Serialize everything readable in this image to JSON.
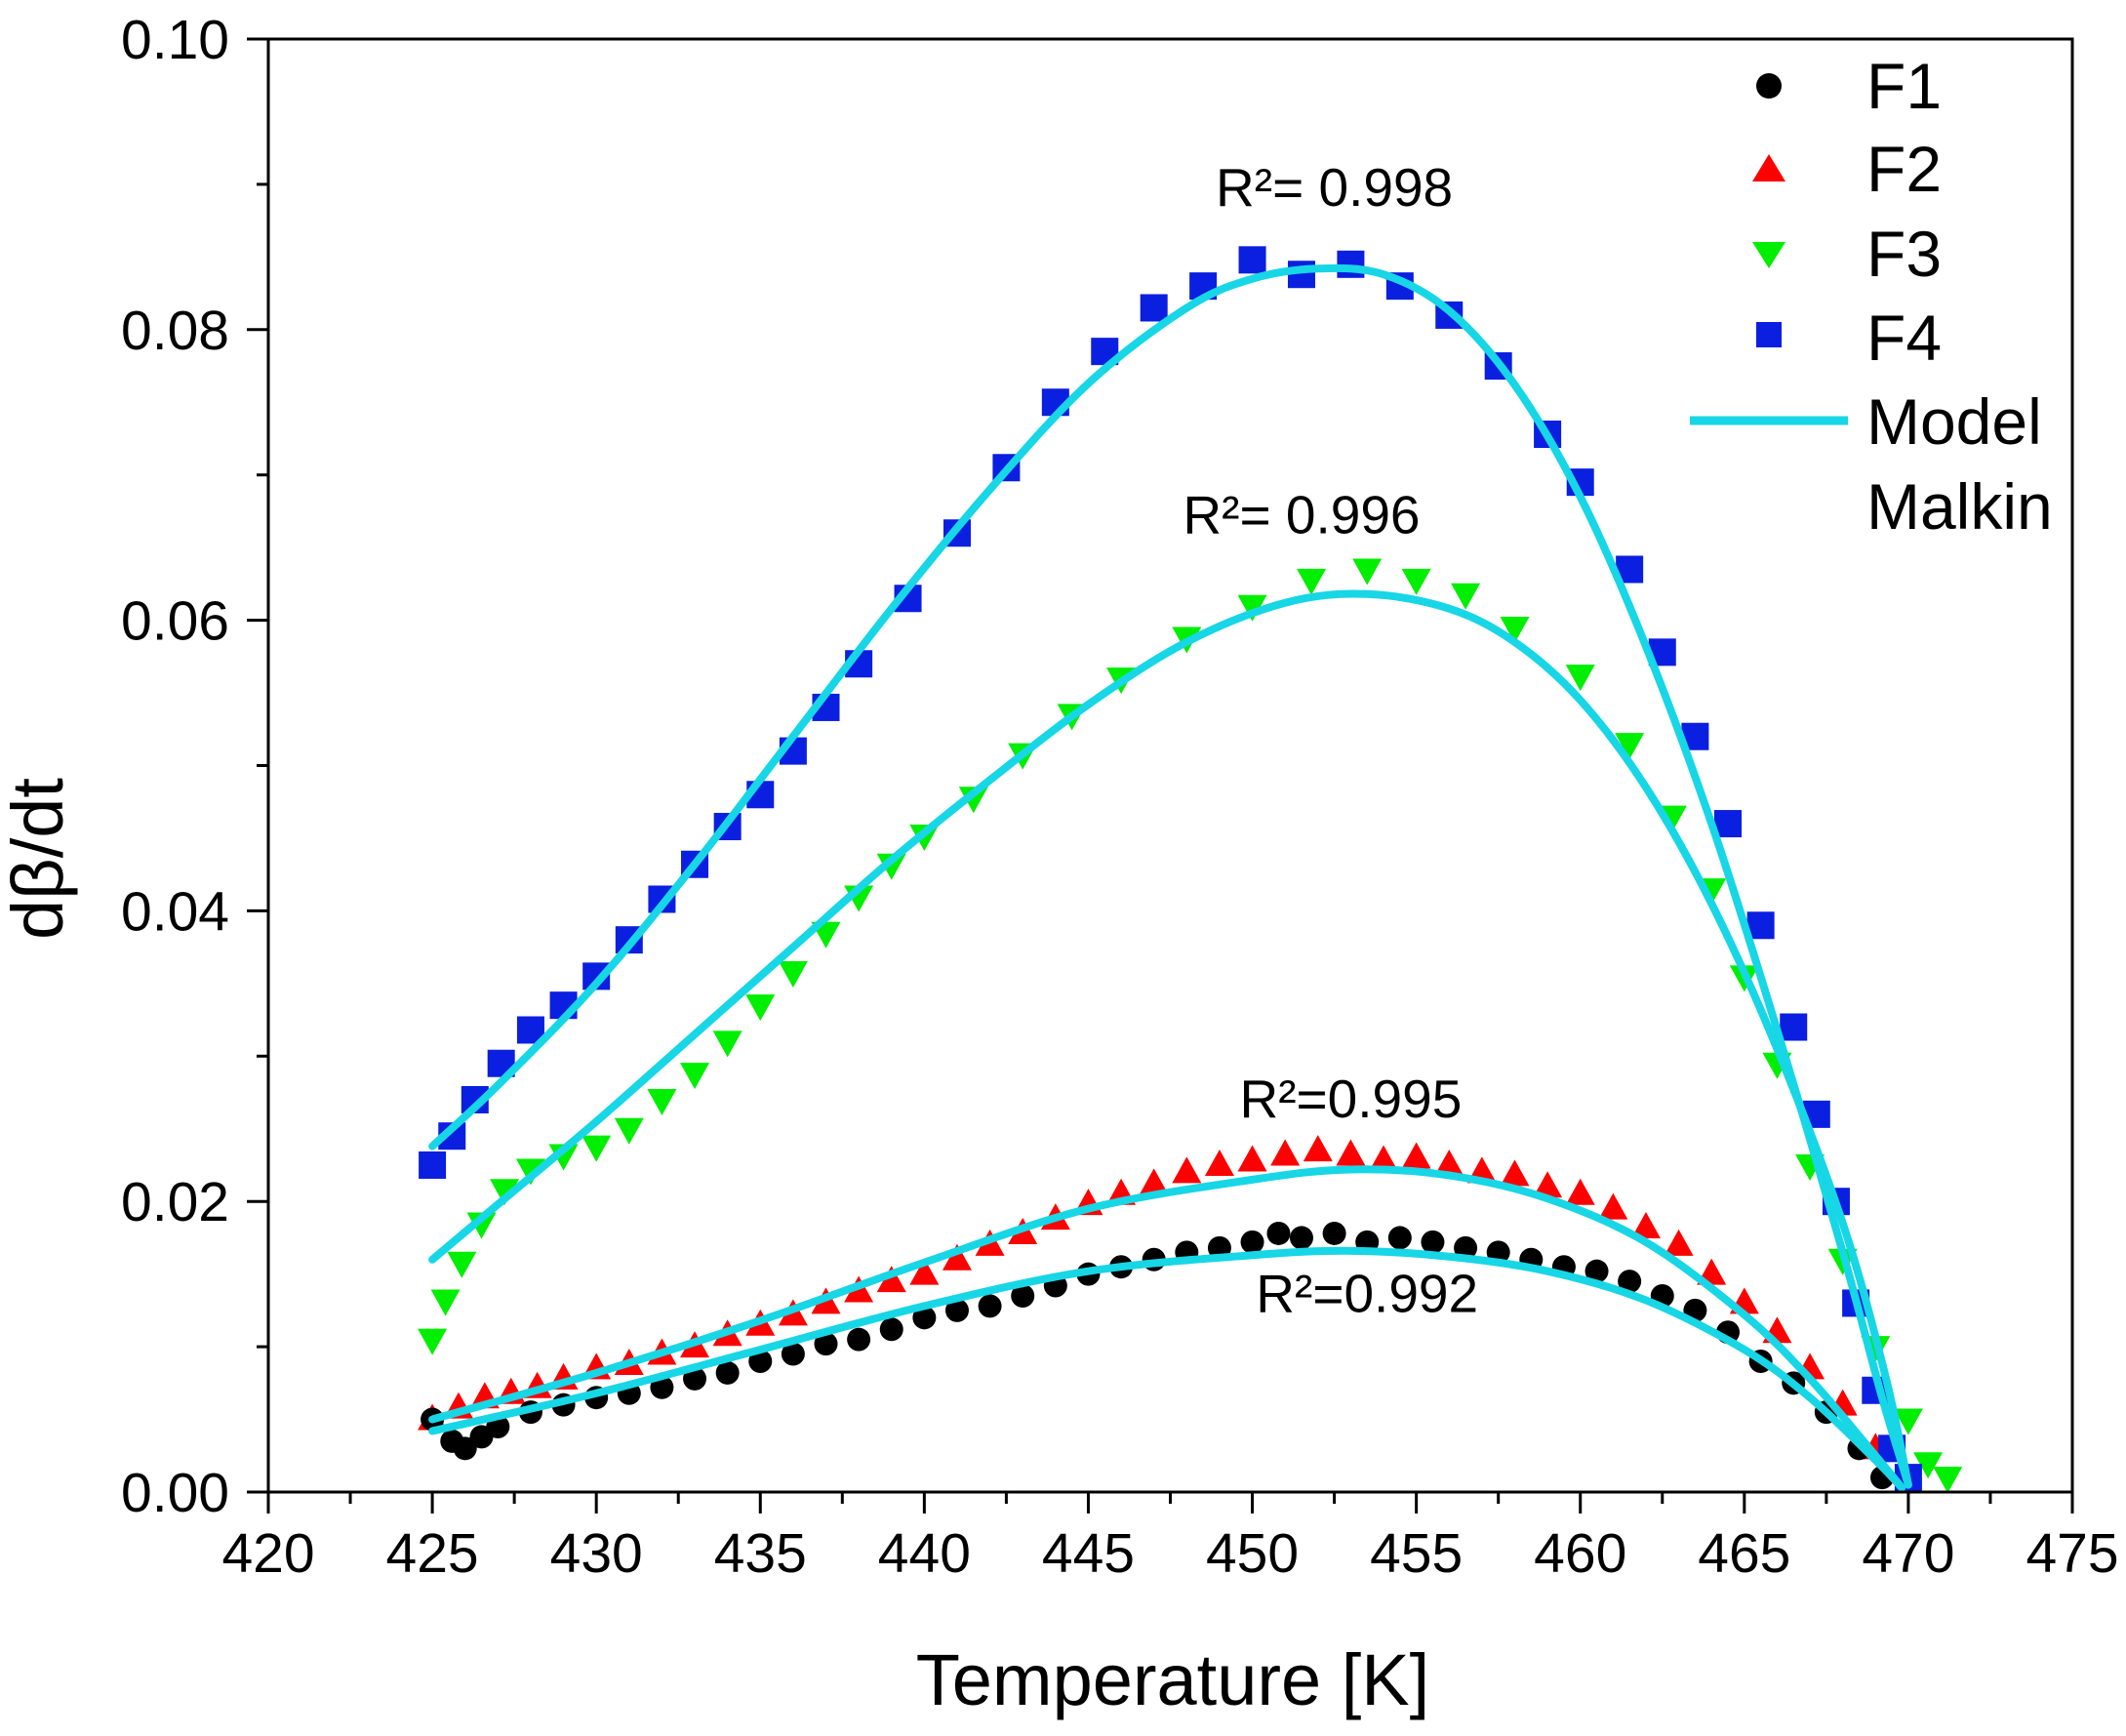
{
  "chart_data": {
    "type": "scatter",
    "xlabel": "Temperature [K]",
    "ylabel": "dβ/dt",
    "xlim": [
      420,
      475
    ],
    "ylim": [
      0.0,
      0.1
    ],
    "x_ticks": [
      420,
      425,
      430,
      435,
      440,
      445,
      450,
      455,
      460,
      465,
      470,
      475
    ],
    "y_ticks": [
      0.0,
      0.02,
      0.04,
      0.06,
      0.08,
      0.1
    ],
    "x_tick_labels": [
      "420",
      "425",
      "430",
      "435",
      "440",
      "445",
      "450",
      "455",
      "460",
      "465",
      "470",
      "475"
    ],
    "y_tick_labels": [
      "0.00",
      "0.02",
      "0.04",
      "0.06",
      "0.08",
      "0.10"
    ],
    "grid": false,
    "legend_position": "top-right",
    "legend": [
      {
        "label": "F1",
        "marker": "circle",
        "color": "#000000"
      },
      {
        "label": "F2",
        "marker": "triangle-up",
        "color": "#ff0000"
      },
      {
        "label": "F3",
        "marker": "triangle-down",
        "color": "#00ee00"
      },
      {
        "label": "F4",
        "marker": "square",
        "color": "#0a1fe0"
      },
      {
        "label_lines": [
          "Model",
          "Malkin"
        ],
        "marker": "line",
        "color": "#17d6e6"
      }
    ],
    "annotations": [
      {
        "text": "R²= 0.998",
        "x": 452.5,
        "y": 0.0885
      },
      {
        "text": "R²= 0.996",
        "x": 451.5,
        "y": 0.066
      },
      {
        "text": "R²=0.995",
        "x": 453.0,
        "y": 0.0258
      },
      {
        "text": "R²=0.992",
        "x": 453.5,
        "y": 0.0124
      }
    ],
    "series": [
      {
        "name": "F1",
        "kind": "points",
        "marker": "circle",
        "color": "#000000",
        "x": [
          425.0,
          425.6,
          426.0,
          426.5,
          427.0,
          428.0,
          429.0,
          430.0,
          431.0,
          432.0,
          433.0,
          434.0,
          435.0,
          436.0,
          437.0,
          438.0,
          439.0,
          440.0,
          441.0,
          442.0,
          443.0,
          444.0,
          445.0,
          446.0,
          447.0,
          448.0,
          449.0,
          450.0,
          450.8,
          451.5,
          452.5,
          453.5,
          454.5,
          455.5,
          456.5,
          457.5,
          458.5,
          459.5,
          460.5,
          461.5,
          462.5,
          463.5,
          464.5,
          465.5,
          466.5,
          467.5,
          468.5,
          469.2
        ],
        "y": [
          0.005,
          0.0035,
          0.003,
          0.0038,
          0.0045,
          0.0055,
          0.006,
          0.0065,
          0.0068,
          0.0072,
          0.0078,
          0.0082,
          0.009,
          0.0095,
          0.0102,
          0.0105,
          0.0112,
          0.012,
          0.0125,
          0.0128,
          0.0135,
          0.0142,
          0.015,
          0.0155,
          0.016,
          0.0165,
          0.0168,
          0.0172,
          0.0178,
          0.0175,
          0.0178,
          0.0172,
          0.0175,
          0.0172,
          0.0168,
          0.0165,
          0.016,
          0.0155,
          0.0152,
          0.0145,
          0.0135,
          0.0125,
          0.011,
          0.009,
          0.0075,
          0.0055,
          0.003,
          0.001
        ]
      },
      {
        "name": "F2",
        "kind": "points",
        "marker": "triangle-up",
        "color": "#ff0000",
        "x": [
          425.0,
          425.8,
          426.6,
          427.4,
          428.2,
          429.0,
          430.0,
          431.0,
          432.0,
          433.0,
          434.0,
          435.0,
          436.0,
          437.0,
          438.0,
          439.0,
          440.0,
          441.0,
          442.0,
          443.0,
          444.0,
          445.0,
          446.0,
          447.0,
          448.0,
          449.0,
          450.0,
          451.0,
          452.0,
          453.0,
          454.0,
          455.0,
          456.0,
          457.0,
          458.0,
          459.0,
          460.0,
          461.0,
          462.0,
          463.0,
          464.0,
          465.0,
          466.0,
          467.0,
          468.0,
          469.0
        ],
        "y": [
          0.005,
          0.0058,
          0.0065,
          0.0068,
          0.0072,
          0.0078,
          0.0085,
          0.0088,
          0.0095,
          0.01,
          0.0108,
          0.0115,
          0.0122,
          0.013,
          0.0138,
          0.0145,
          0.015,
          0.016,
          0.017,
          0.0178,
          0.0188,
          0.0198,
          0.0205,
          0.0212,
          0.022,
          0.0225,
          0.0228,
          0.0232,
          0.0235,
          0.0232,
          0.0228,
          0.023,
          0.0225,
          0.022,
          0.0218,
          0.021,
          0.0205,
          0.0195,
          0.0182,
          0.017,
          0.015,
          0.013,
          0.011,
          0.0085,
          0.006,
          0.003
        ]
      },
      {
        "name": "F3",
        "kind": "points",
        "marker": "triangle-down",
        "color": "#00ee00",
        "x": [
          425.0,
          425.4,
          425.9,
          426.5,
          427.2,
          428.0,
          429.0,
          430.0,
          431.0,
          432.0,
          433.0,
          434.0,
          435.0,
          436.0,
          437.0,
          438.0,
          439.0,
          440.0,
          441.5,
          443.0,
          444.5,
          446.0,
          448.0,
          450.0,
          451.8,
          453.5,
          455.0,
          456.5,
          458.0,
          460.0,
          461.5,
          462.8,
          464.0,
          465.0,
          466.0,
          467.0,
          468.0,
          469.0,
          470.0,
          470.6,
          471.2
        ],
        "y": [
          0.0105,
          0.0132,
          0.0158,
          0.0185,
          0.0208,
          0.0222,
          0.0232,
          0.0238,
          0.025,
          0.027,
          0.0288,
          0.031,
          0.0335,
          0.0358,
          0.0385,
          0.041,
          0.0432,
          0.0452,
          0.0478,
          0.0508,
          0.0535,
          0.056,
          0.0588,
          0.061,
          0.0628,
          0.0635,
          0.0628,
          0.0618,
          0.0595,
          0.0562,
          0.0515,
          0.0465,
          0.0415,
          0.0355,
          0.0295,
          0.0225,
          0.016,
          0.01,
          0.005,
          0.002,
          0.001
        ]
      },
      {
        "name": "F4",
        "kind": "points",
        "marker": "square",
        "color": "#0a1fe0",
        "x": [
          425.0,
          425.6,
          426.3,
          427.1,
          428.0,
          429.0,
          430.0,
          431.0,
          432.0,
          433.0,
          434.0,
          435.0,
          436.0,
          437.0,
          438.0,
          439.5,
          441.0,
          442.5,
          444.0,
          445.5,
          447.0,
          448.5,
          450.0,
          451.5,
          453.0,
          454.5,
          456.0,
          457.5,
          459.0,
          460.0,
          461.5,
          462.5,
          463.5,
          464.5,
          465.5,
          466.5,
          467.2,
          467.8,
          468.4,
          469.0,
          469.5,
          470.0
        ],
        "y": [
          0.0225,
          0.0245,
          0.027,
          0.0295,
          0.0318,
          0.0335,
          0.0355,
          0.038,
          0.0408,
          0.0432,
          0.0458,
          0.048,
          0.051,
          0.054,
          0.057,
          0.0615,
          0.066,
          0.0705,
          0.075,
          0.0785,
          0.0815,
          0.083,
          0.0848,
          0.0838,
          0.0845,
          0.083,
          0.081,
          0.0775,
          0.0728,
          0.0695,
          0.0635,
          0.0578,
          0.052,
          0.046,
          0.039,
          0.032,
          0.026,
          0.02,
          0.013,
          0.007,
          0.003,
          0.001
        ]
      },
      {
        "name": "Model F4",
        "kind": "line",
        "color": "#17d6e6",
        "x": [
          425.0,
          427.0,
          430.0,
          433.0,
          436.0,
          439.0,
          442.0,
          445.0,
          448.0,
          450.0,
          452.0,
          454.0,
          456.0,
          458.0,
          460.0,
          462.0,
          464.0,
          466.0,
          468.0,
          469.2,
          470.0
        ],
        "y": [
          0.0238,
          0.028,
          0.035,
          0.0432,
          0.052,
          0.0608,
          0.069,
          0.0763,
          0.0815,
          0.0835,
          0.0842,
          0.0838,
          0.0813,
          0.0762,
          0.0685,
          0.0582,
          0.046,
          0.0318,
          0.0165,
          0.0065,
          0.0005
        ]
      },
      {
        "name": "Model F3",
        "kind": "line",
        "color": "#17d6e6",
        "x": [
          425.0,
          427.0,
          430.0,
          433.0,
          436.0,
          439.0,
          442.0,
          445.0,
          448.0,
          451.0,
          453.5,
          456.0,
          458.0,
          460.0,
          462.0,
          464.0,
          466.0,
          468.0,
          469.3,
          470.0
        ],
        "y": [
          0.016,
          0.0198,
          0.0255,
          0.0315,
          0.0375,
          0.0435,
          0.049,
          0.0542,
          0.0585,
          0.0612,
          0.0618,
          0.0608,
          0.0585,
          0.0545,
          0.0485,
          0.0405,
          0.0305,
          0.0185,
          0.008,
          0.0005
        ]
      },
      {
        "name": "Model F2",
        "kind": "line",
        "color": "#17d6e6",
        "x": [
          425.0,
          430.0,
          435.0,
          440.0,
          445.0,
          450.0,
          453.0,
          456.0,
          459.0,
          462.0,
          465.0,
          467.0,
          469.0,
          469.8
        ],
        "y": [
          0.005,
          0.0082,
          0.0118,
          0.0158,
          0.0195,
          0.0215,
          0.0222,
          0.0218,
          0.0202,
          0.0172,
          0.0122,
          0.0078,
          0.0025,
          0.0003
        ]
      },
      {
        "name": "Model F1",
        "kind": "line",
        "color": "#17d6e6",
        "x": [
          425.0,
          430.0,
          435.0,
          440.0,
          445.0,
          450.0,
          453.0,
          456.0,
          459.0,
          462.0,
          465.0,
          467.0,
          469.0,
          469.8
        ],
        "y": [
          0.0042,
          0.0068,
          0.0098,
          0.0128,
          0.0152,
          0.0163,
          0.0166,
          0.0162,
          0.0152,
          0.0132,
          0.0098,
          0.0065,
          0.0022,
          0.0003
        ]
      }
    ]
  }
}
